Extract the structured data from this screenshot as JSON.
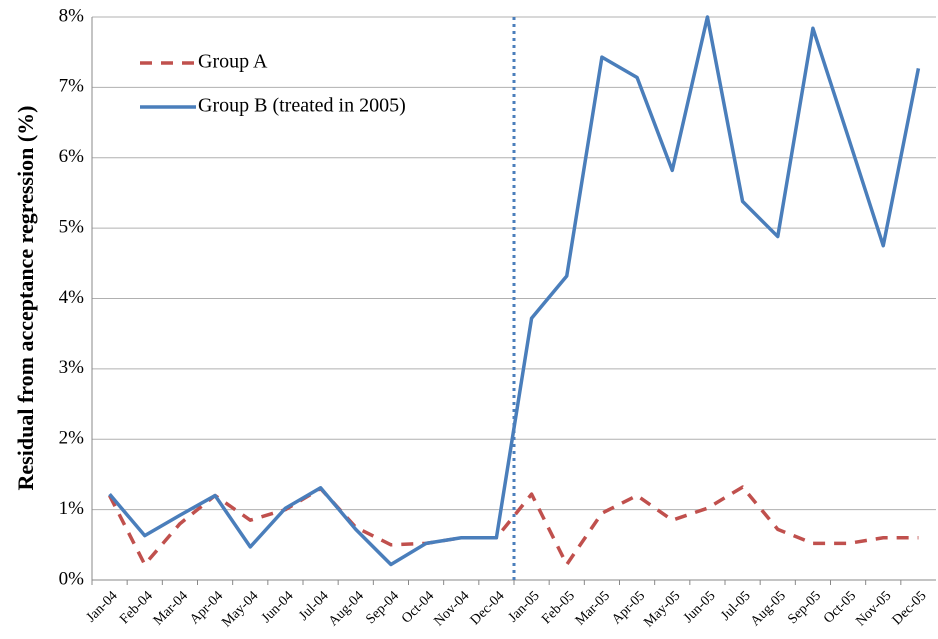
{
  "chart_data": {
    "type": "line",
    "y_label": "Residual from acceptance regression (%)",
    "categories": [
      "Jan-04",
      "Feb-04",
      "Mar-04",
      "Apr-04",
      "May-04",
      "Jun-04",
      "Jul-04",
      "Aug-04",
      "Sep-04",
      "Oct-04",
      "Nov-04",
      "Dec-04",
      "Jan-05",
      "Feb-05",
      "Mar-05",
      "Apr-05",
      "May-05",
      "Jun-05",
      "Jul-05",
      "Aug-05",
      "Sep-05",
      "Oct-05",
      "Nov-05",
      "Dec-05"
    ],
    "series": [
      {
        "name": "Group A",
        "color": "#c0504d",
        "dashed": true,
        "values": [
          1.2,
          0.22,
          0.8,
          1.2,
          0.85,
          1.0,
          1.3,
          0.75,
          0.5,
          0.52,
          0.6,
          0.6,
          1.22,
          0.22,
          0.95,
          1.2,
          0.85,
          1.02,
          1.32,
          0.72,
          0.52,
          0.52,
          0.6,
          0.6
        ]
      },
      {
        "name": "Group B (treated in 2005)",
        "color": "#4a7ebb",
        "dashed": false,
        "values": [
          1.22,
          0.63,
          0.92,
          1.2,
          0.47,
          1.02,
          1.31,
          0.72,
          0.22,
          0.52,
          0.6,
          0.6,
          3.72,
          4.32,
          7.43,
          7.14,
          5.82,
          8.0,
          5.38,
          4.88,
          7.84,
          6.3,
          4.75,
          7.27
        ]
      }
    ],
    "ylim": [
      0,
      8
    ],
    "yticks": [
      {
        "value": 0,
        "label": "0%"
      },
      {
        "value": 1,
        "label": "1%"
      },
      {
        "value": 2,
        "label": "2%"
      },
      {
        "value": 3,
        "label": "3%"
      },
      {
        "value": 4,
        "label": "4%"
      },
      {
        "value": 5,
        "label": "5%"
      },
      {
        "value": 6,
        "label": "6%"
      },
      {
        "value": 7,
        "label": "7%"
      },
      {
        "value": 8,
        "label": "8%"
      }
    ],
    "grid": true
  }
}
